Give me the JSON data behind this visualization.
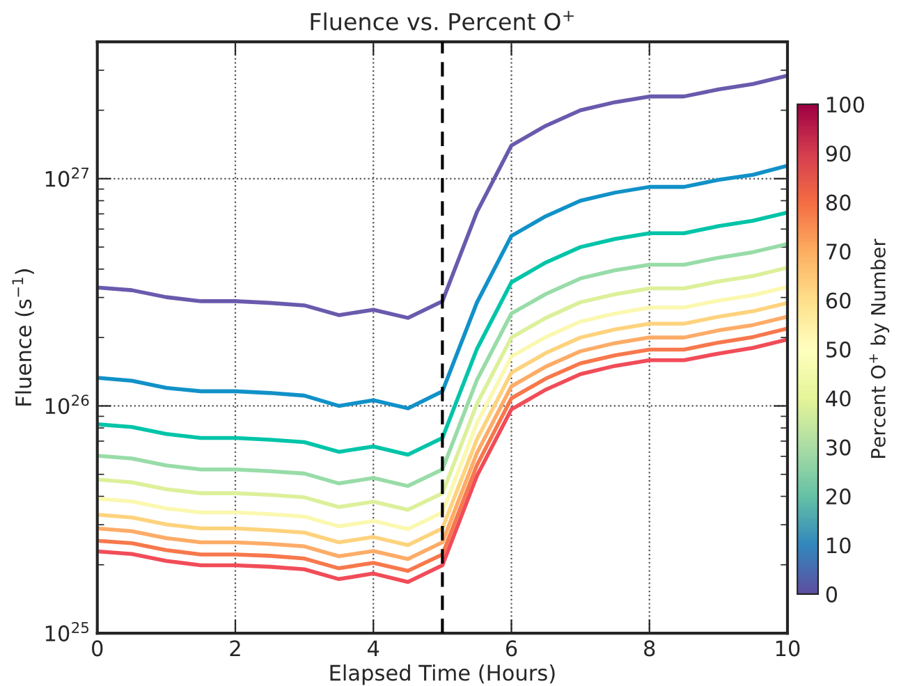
{
  "chart_data": {
    "type": "line",
    "title": "Fluence vs. Percent O$^{+}$",
    "xlabel": "Elapsed Time (Hours)",
    "ylabel": "Fluence (s$^{−1}$)",
    "clabel": "Percent O$^{+}$ by Number",
    "x": [
      0,
      0.5,
      1,
      1.5,
      2,
      2.5,
      3,
      3.5,
      4,
      4.5,
      5,
      5.5,
      6,
      6.5,
      7,
      7.5,
      8,
      8.5,
      9,
      9.5,
      10
    ],
    "series": [
      {
        "color": "#6a5aad",
        "values": [
          3.32e+26,
          3.23e+26,
          3.01e+26,
          2.89e+26,
          2.89e+26,
          2.84e+26,
          2.77e+26,
          2.51e+26,
          2.65e+26,
          2.44e+26,
          2.89e+26,
          7.13e+26,
          1.4e+27,
          1.71e+27,
          2e+27,
          2.17e+27,
          2.3e+27,
          2.3e+27,
          2.47e+27,
          2.61e+27,
          2.84e+27
        ]
      },
      {
        "color": "#1191c8",
        "values": [
          1.33e+26,
          1.29e+26,
          1.2e+26,
          1.16e+26,
          1.16e+26,
          1.14e+26,
          1.11e+26,
          1e+26,
          1.06e+26,
          9.76e+25,
          1.16e+26,
          2.85e+26,
          5.6e+26,
          6.84e+26,
          8e+26,
          8.68e+26,
          9.2e+26,
          9.2e+26,
          9.88e+26,
          1.04e+27,
          1.14e+27
        ]
      },
      {
        "color": "#00c4a8",
        "values": [
          8.3e+25,
          8.08e+25,
          7.53e+25,
          7.23e+25,
          7.23e+25,
          7.1e+25,
          6.93e+25,
          6.28e+25,
          6.63e+25,
          6.1e+25,
          7.23e+25,
          1.78e+26,
          3.5e+26,
          4.28e+26,
          5e+26,
          5.43e+26,
          5.75e+26,
          5.75e+26,
          6.18e+26,
          6.53e+26,
          7.1e+26
        ]
      },
      {
        "color": "#98dca8",
        "values": [
          6.04e+25,
          5.87e+25,
          5.47e+25,
          5.25e+25,
          5.25e+25,
          5.16e+25,
          5.04e+25,
          4.56e+25,
          4.82e+25,
          4.44e+25,
          5.25e+25,
          1.3e+26,
          2.55e+26,
          3.11e+26,
          3.64e+26,
          3.95e+26,
          4.18e+26,
          4.18e+26,
          4.49e+26,
          4.75e+26,
          5.16e+26
        ]
      },
      {
        "color": "#dcf09a",
        "values": [
          4.74e+25,
          4.61e+25,
          4.3e+25,
          4.13e+25,
          4.13e+25,
          4.06e+25,
          3.96e+25,
          3.59e+25,
          3.79e+25,
          3.49e+25,
          4.13e+25,
          1.02e+26,
          2e+26,
          2.44e+26,
          2.86e+26,
          3.1e+26,
          3.29e+26,
          3.29e+26,
          3.53e+26,
          3.73e+26,
          4.06e+26
        ]
      },
      {
        "color": "#fbf8b0",
        "values": [
          3.91e+25,
          3.8e+25,
          3.54e+25,
          3.4e+25,
          3.4e+25,
          3.34e+25,
          3.26e+25,
          2.95e+25,
          3.12e+25,
          2.87e+25,
          3.4e+25,
          8.39e+25,
          1.65e+26,
          2.01e+26,
          2.35e+26,
          2.55e+26,
          2.71e+26,
          2.71e+26,
          2.91e+26,
          3.07e+26,
          3.34e+26
        ]
      },
      {
        "color": "#fed37e",
        "values": [
          3.32e+25,
          3.23e+25,
          3.01e+25,
          2.89e+25,
          2.89e+25,
          2.84e+25,
          2.77e+25,
          2.51e+25,
          2.65e+25,
          2.44e+25,
          2.89e+25,
          7.13e+25,
          1.4e+26,
          1.71e+26,
          2e+26,
          2.17e+26,
          2.3e+26,
          2.3e+26,
          2.47e+26,
          2.61e+26,
          2.84e+26
        ]
      },
      {
        "color": "#fdac68",
        "values": [
          2.89e+25,
          2.81e+25,
          2.62e+25,
          2.51e+25,
          2.51e+25,
          2.47e+25,
          2.41e+25,
          2.18e+25,
          2.3e+25,
          2.12e+25,
          2.51e+25,
          6.2e+25,
          1.22e+26,
          1.49e+26,
          1.74e+26,
          1.89e+26,
          2e+26,
          2e+26,
          2.15e+26,
          2.27e+26,
          2.47e+26
        ]
      },
      {
        "color": "#f7784c",
        "values": [
          2.55e+25,
          2.49e+25,
          2.32e+25,
          2.22e+25,
          2.22e+25,
          2.19e+25,
          2.13e+25,
          1.93e+25,
          2.04e+25,
          1.88e+25,
          2.22e+25,
          5.48e+25,
          1.08e+26,
          1.32e+26,
          1.54e+26,
          1.67e+26,
          1.77e+26,
          1.77e+26,
          1.9e+26,
          2.01e+26,
          2.19e+26
        ]
      },
      {
        "color": "#f14c58",
        "values": [
          2.29e+25,
          2.23e+25,
          2.08e+25,
          1.99e+25,
          1.99e+25,
          1.96e+25,
          1.91e+25,
          1.73e+25,
          1.83e+25,
          1.68e+25,
          1.99e+25,
          4.92e+25,
          9.66e+25,
          1.18e+26,
          1.38e+26,
          1.5e+26,
          1.59e+26,
          1.59e+26,
          1.7e+26,
          1.8e+26,
          1.96e+26
        ]
      }
    ],
    "log": "y",
    "xlim": [
      0,
      10
    ],
    "xticks": [
      0,
      2,
      4,
      6,
      8,
      10
    ],
    "ylim": [
      1e+25,
      4e+27
    ],
    "yticks": [
      {
        "value": 1e+25,
        "label": "10$^{25}$"
      },
      {
        "value": 1e+26,
        "label": "10$^{26}$"
      },
      {
        "value": 1e+27,
        "label": "10$^{27}$"
      }
    ],
    "grid": true,
    "legend": false,
    "ref_lines": [
      {
        "axis": "x",
        "value": 5,
        "color": "#000000",
        "line_style": "dashed"
      }
    ],
    "clim": [
      0,
      100
    ],
    "cticks": [
      0,
      10,
      20,
      30,
      40,
      50,
      60,
      70,
      80,
      90,
      100
    ]
  }
}
